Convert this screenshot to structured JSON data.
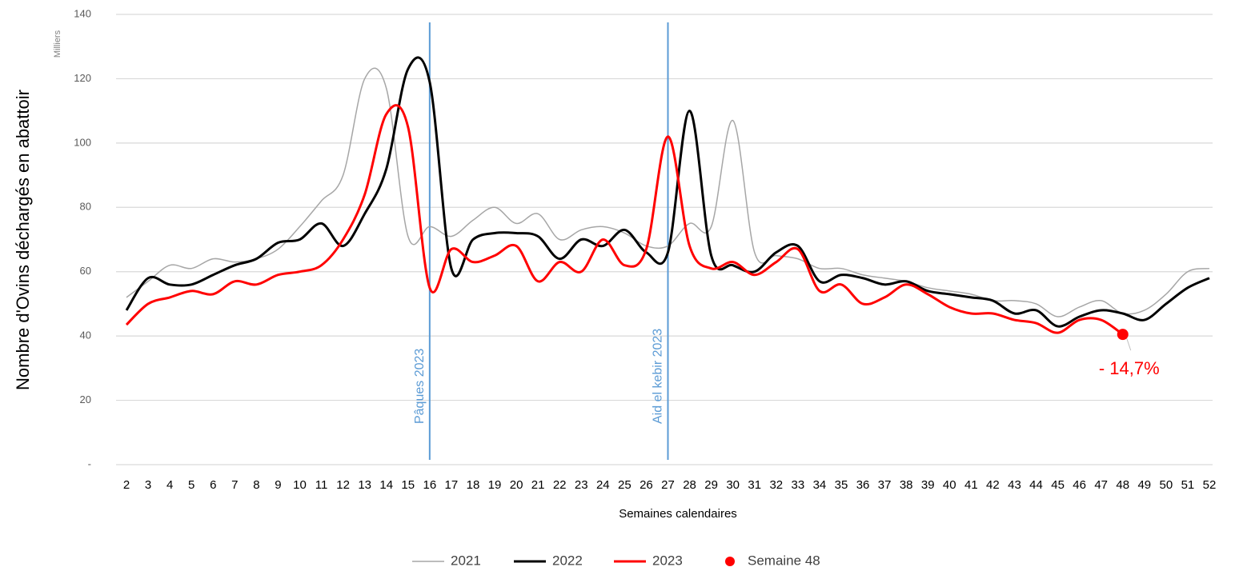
{
  "chart_data": {
    "type": "line",
    "y_label": "Nombre d'Ovins déchargés en abattoir",
    "y_unit": "Milliers",
    "x_label": "Semaines calendaires",
    "categories": [
      "2",
      "3",
      "4",
      "5",
      "6",
      "7",
      "8",
      "9",
      "10",
      "11",
      "12",
      "13",
      "14",
      "15",
      "16",
      "17",
      "18",
      "19",
      "20",
      "21",
      "22",
      "23",
      "24",
      "25",
      "26",
      "27",
      "28",
      "29",
      "30",
      "31",
      "32",
      "33",
      "34",
      "35",
      "36",
      "37",
      "38",
      "39",
      "40",
      "41",
      "42",
      "43",
      "44",
      "45",
      "46",
      "47",
      "48",
      "49",
      "50",
      "51",
      "52"
    ],
    "series": [
      {
        "name": "2021",
        "color": "#a6a6a6",
        "width": 1.5,
        "values": [
          52,
          57,
          62,
          61,
          64,
          63,
          64,
          67,
          74,
          82,
          90,
          120,
          117,
          71,
          74,
          71,
          76,
          80,
          75,
          78,
          70,
          73,
          74,
          72,
          68,
          68,
          75,
          74,
          107,
          66,
          65,
          64,
          61,
          61,
          59,
          58,
          57,
          55,
          54,
          53,
          51,
          51,
          50,
          46,
          49,
          51,
          47,
          48,
          53,
          60,
          61
        ]
      },
      {
        "name": "2022",
        "color": "#000000",
        "width": 3,
        "values": [
          48,
          58,
          56,
          56,
          59,
          62,
          64,
          69,
          70,
          75,
          68,
          78,
          92,
          123,
          119,
          61,
          70,
          72,
          72,
          71,
          64,
          70,
          68,
          73,
          66,
          66,
          110,
          65,
          62,
          60,
          66,
          68,
          57,
          59,
          58,
          56,
          57,
          54,
          53,
          52,
          51,
          47,
          48,
          43,
          46,
          48,
          47,
          45,
          50,
          55,
          58
        ]
      },
      {
        "name": "2023",
        "color": "#ff0000",
        "width": 3,
        "values": [
          43.5,
          50,
          52,
          54,
          53,
          57,
          56,
          59,
          60,
          62,
          70,
          84,
          109,
          105,
          55,
          67,
          63,
          65,
          68,
          57,
          63,
          60,
          70,
          62,
          67,
          102,
          68,
          61,
          63,
          59,
          63,
          67,
          54,
          56,
          50,
          52,
          56,
          53,
          49,
          47,
          47,
          45,
          44,
          41,
          45,
          45,
          40.5,
          null,
          null,
          null,
          null
        ]
      }
    ],
    "highlight": {
      "name": "Semaine 48",
      "category": 46,
      "value": 40.5,
      "label": "- 14,7%",
      "color": "#ff0000"
    },
    "annotations": [
      {
        "text": "Pâques 2023",
        "category": 14
      },
      {
        "text": "Aid el kebir 2023",
        "category": 25
      }
    ],
    "annotation_color": "#5b9bd5",
    "ylim": [
      0,
      140
    ],
    "yticks": [
      {
        "value": 0,
        "label": "-"
      },
      20,
      40,
      60,
      80,
      100,
      120,
      140
    ],
    "grid": true
  }
}
